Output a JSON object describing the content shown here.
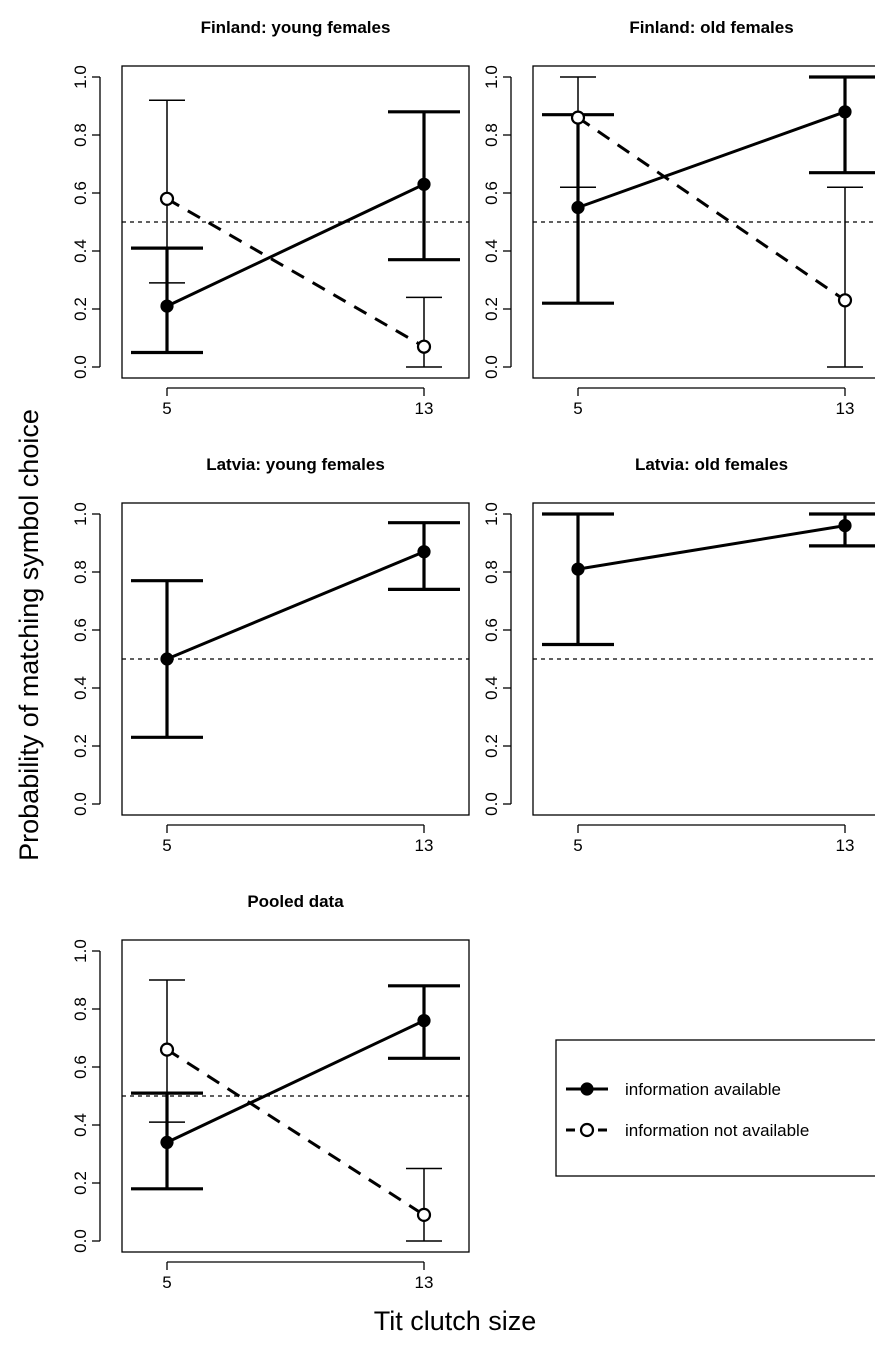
{
  "ylabel": "Probability of matching symbol choice",
  "xlabel": "Tit clutch size",
  "reference_line": 0.5,
  "legend": {
    "position": "right of bottom panel",
    "entries": [
      {
        "label": "information available",
        "marker": "filled-circle",
        "line": "solid"
      },
      {
        "label": "information not available",
        "marker": "open-circle",
        "line": "dashed"
      }
    ]
  },
  "chart_data": [
    {
      "type": "line",
      "title": "Finland: young females",
      "x": [
        "5",
        "13"
      ],
      "ylim": [
        0,
        1
      ],
      "yticks": [
        "0.0",
        "0.2",
        "0.4",
        "0.6",
        "0.8",
        "1.0"
      ],
      "series": [
        {
          "name": "information available",
          "style": "solid",
          "marker": "filled",
          "values": [
            0.21,
            0.63
          ],
          "lower": [
            0.05,
            0.37
          ],
          "upper": [
            0.41,
            0.88
          ]
        },
        {
          "name": "information not available",
          "style": "dashed",
          "marker": "open",
          "values": [
            0.58,
            0.07
          ],
          "lower": [
            0.29,
            0.0
          ],
          "upper": [
            0.92,
            0.24
          ]
        }
      ]
    },
    {
      "type": "line",
      "title": "Finland: old females",
      "x": [
        "5",
        "13"
      ],
      "ylim": [
        0,
        1
      ],
      "yticks": [
        "0.0",
        "0.2",
        "0.4",
        "0.6",
        "0.8",
        "1.0"
      ],
      "series": [
        {
          "name": "information available",
          "style": "solid",
          "marker": "filled",
          "values": [
            0.55,
            0.88
          ],
          "lower": [
            0.22,
            0.67
          ],
          "upper": [
            0.87,
            1.0
          ]
        },
        {
          "name": "information not available",
          "style": "dashed",
          "marker": "open",
          "values": [
            0.86,
            0.23
          ],
          "lower": [
            0.62,
            0.0
          ],
          "upper": [
            1.0,
            0.62
          ]
        }
      ]
    },
    {
      "type": "line",
      "title": "Latvia: young females",
      "x": [
        "5",
        "13"
      ],
      "ylim": [
        0,
        1
      ],
      "yticks": [
        "0.0",
        "0.2",
        "0.4",
        "0.6",
        "0.8",
        "1.0"
      ],
      "series": [
        {
          "name": "information available",
          "style": "solid",
          "marker": "filled",
          "values": [
            0.5,
            0.87
          ],
          "lower": [
            0.23,
            0.74
          ],
          "upper": [
            0.77,
            0.97
          ]
        }
      ]
    },
    {
      "type": "line",
      "title": "Latvia: old females",
      "x": [
        "5",
        "13"
      ],
      "ylim": [
        0,
        1
      ],
      "yticks": [
        "0.0",
        "0.2",
        "0.4",
        "0.6",
        "0.8",
        "1.0"
      ],
      "series": [
        {
          "name": "information available",
          "style": "solid",
          "marker": "filled",
          "values": [
            0.81,
            0.96
          ],
          "lower": [
            0.55,
            0.89
          ],
          "upper": [
            1.0,
            1.0
          ]
        }
      ]
    },
    {
      "type": "line",
      "title": "Pooled data",
      "x": [
        "5",
        "13"
      ],
      "ylim": [
        0,
        1
      ],
      "yticks": [
        "0.0",
        "0.2",
        "0.4",
        "0.6",
        "0.8",
        "1.0"
      ],
      "series": [
        {
          "name": "information available",
          "style": "solid",
          "marker": "filled",
          "values": [
            0.34,
            0.76
          ],
          "lower": [
            0.18,
            0.63
          ],
          "upper": [
            0.51,
            0.88
          ]
        },
        {
          "name": "information not available",
          "style": "dashed",
          "marker": "open",
          "values": [
            0.66,
            0.09
          ],
          "lower": [
            0.41,
            0.0
          ],
          "upper": [
            0.9,
            0.25
          ]
        }
      ]
    }
  ]
}
